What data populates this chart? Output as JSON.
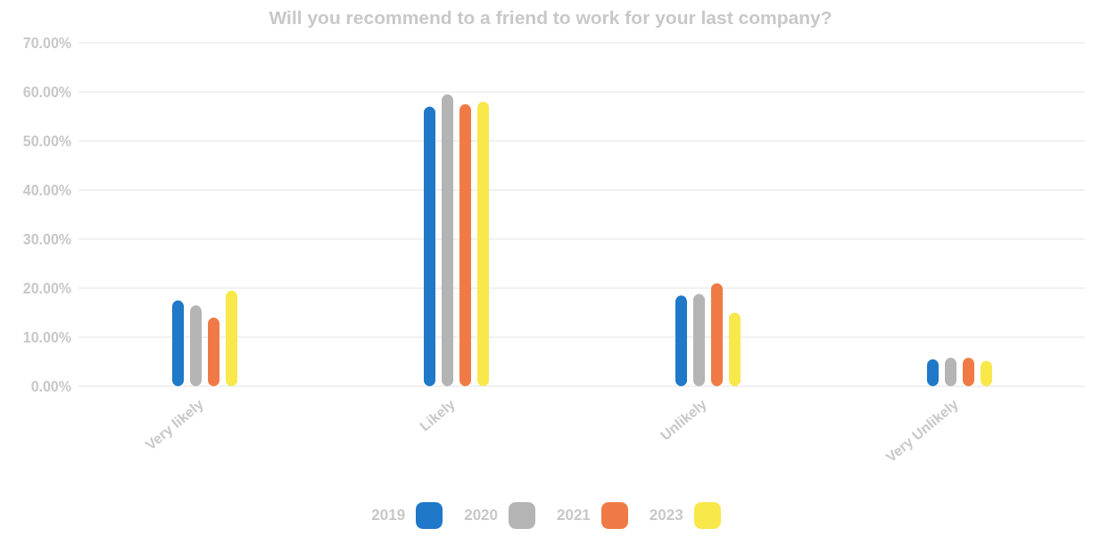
{
  "chart_data": {
    "type": "bar",
    "title": "Will you recommend to a friend to work for your last company?",
    "categories": [
      "Very likely",
      "Likely",
      "Unlikely",
      "Very Unlikely"
    ],
    "series": [
      {
        "name": "2019",
        "color": "#1f78c8",
        "values": [
          17.5,
          57,
          18.5,
          5.5
        ]
      },
      {
        "name": "2020",
        "color": "#b4b4b4",
        "values": [
          16.5,
          59.5,
          18.8,
          5.8
        ]
      },
      {
        "name": "2021",
        "color": "#f07a45",
        "values": [
          14,
          57.5,
          21,
          5.8
        ]
      },
      {
        "name": "2023",
        "color": "#f8e84a",
        "values": [
          19.5,
          58,
          15,
          5.2
        ]
      }
    ],
    "ylim": [
      0,
      70
    ],
    "yticks": [
      {
        "value": 0,
        "label": "0.00%"
      },
      {
        "value": 10,
        "label": "10.00%"
      },
      {
        "value": 20,
        "label": "20.00%"
      },
      {
        "value": 30,
        "label": "30.00%"
      },
      {
        "value": 40,
        "label": "40.00%"
      },
      {
        "value": 50,
        "label": "50.00%"
      },
      {
        "value": 60,
        "label": "60.00%"
      },
      {
        "value": 70,
        "label": "70.00%"
      }
    ],
    "grid": "y",
    "legend": "bottom"
  }
}
